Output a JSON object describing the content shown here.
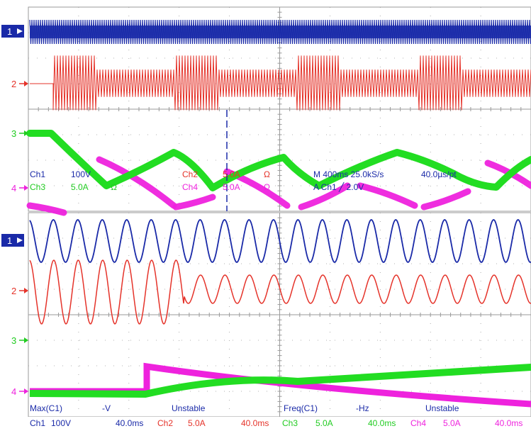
{
  "colors": {
    "ch1": "#1a2aa8",
    "ch2": "#e5332a",
    "ch3": "#22dd22",
    "ch4": "#ee22dd",
    "grid": "#9a9a9a",
    "background": "#ffffff",
    "marker_bg": "#1a2aa8"
  },
  "top_panel": {
    "markers": [
      "1",
      "2",
      "3",
      "4"
    ],
    "settings": {
      "ch1_name": "Ch1",
      "ch1_scale": "100V",
      "ch3_name": "Ch3",
      "ch3_scale": "5.0A",
      "ch3_unit": "Ω",
      "ch2_name": "Ch2",
      "ch2_scale": "5.0A",
      "ch2_unit": "Ω",
      "ch4_name": "Ch4",
      "ch4_scale": "5.0A",
      "ch4_unit": "Ω",
      "timebase": "M 400ms 25.0kS/s",
      "record": "40.0µs/pt",
      "trigger": "A  Ch1  ╱  2.0V"
    }
  },
  "bottom_panel": {
    "markers": [
      "1",
      "2",
      "3",
      "4"
    ]
  },
  "measurements": [
    {
      "label": "Max(C1)",
      "value": "-V",
      "status": "Unstable"
    },
    {
      "label": "Freq(C1)",
      "value": "-Hz",
      "status": "Unstable"
    }
  ],
  "status_bar": [
    {
      "ch": "Ch1",
      "scale": "100V",
      "time": "40.0ms",
      "color": "#1a2aa8"
    },
    {
      "ch": "Ch2",
      "scale": "5.0A",
      "time": "40.0ms",
      "color": "#e5332a"
    },
    {
      "ch": "Ch3",
      "scale": "5.0A",
      "time": "40.0ms",
      "color": "#22dd22"
    },
    {
      "ch": "Ch4",
      "scale": "5.0A",
      "time": "40.0ms",
      "color": "#ee22dd"
    }
  ]
}
